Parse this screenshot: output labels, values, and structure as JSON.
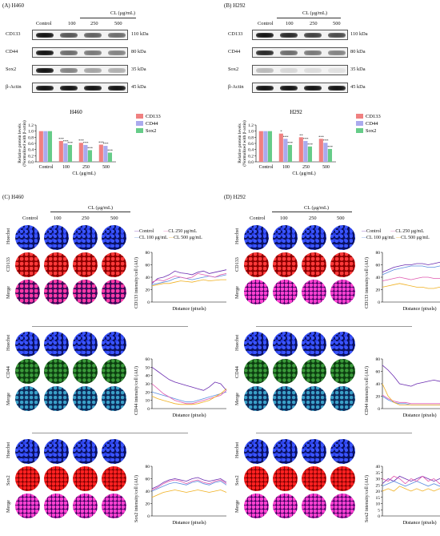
{
  "panel_A": {
    "label": "(A)",
    "cell": "H460"
  },
  "panel_B": {
    "label": "(B)",
    "cell": "H292"
  },
  "panel_C": {
    "label": "(C)",
    "cell": "H460"
  },
  "panel_D": {
    "label": "(D)",
    "cell": "H292"
  },
  "treatment_header": "CL (μg/mL)",
  "lanes": [
    "Control",
    "100",
    "250",
    "500"
  ],
  "blot_rows": [
    {
      "name": "CD133",
      "size": "110 kDa"
    },
    {
      "name": "CD44",
      "size": "80 kDa"
    },
    {
      "name": "Sox2",
      "size": "35 kDa"
    },
    {
      "name": "β-Actin",
      "size": "45 kDa"
    }
  ],
  "if_rows": {
    "hoechst": "Hoechst",
    "cd133": "CD133",
    "cd44": "CD44",
    "sox2": "Sox2",
    "merge": "Merge"
  },
  "if_legend": {
    "control": "Control",
    "cl100": "CL 100 μg/mL",
    "cl250": "CL 250 μg/mL",
    "cl500": "CL 500 μg/mL"
  },
  "profile_xlabel": "Distance (pixels)",
  "profile_ylabels": {
    "cd133": "CD133 intensity/cell (AU)",
    "cd44": "CD44 intensity/cell (AU)",
    "sox2": "Sox2 intensity/cell (AU)"
  },
  "colors": {
    "control": "#6a2bb0",
    "cl100": "#5b8de0",
    "cl250": "#e05ab0",
    "cl500": "#f0b020",
    "cd133": "#f08080",
    "cd44": "#aaaaee",
    "sox2": "#66cc88"
  },
  "chart_data": [
    {
      "type": "bar",
      "panel": "A",
      "title": "H460",
      "xlabel": "CL (μg/mL)",
      "ylabel": "Relative protein levels (Normalized with β-actin)",
      "categories": [
        "Control",
        "100",
        "250",
        "500"
      ],
      "ylim": [
        0,
        1.2
      ],
      "yticks": [
        "0.0",
        "0.2",
        "0.4",
        "0.6",
        "0.8",
        "1.0",
        "1.2"
      ],
      "legend": "top-right",
      "series": [
        {
          "name": "CD133",
          "values": [
            1.0,
            0.68,
            0.62,
            0.56
          ]
        },
        {
          "name": "CD44",
          "values": [
            1.0,
            0.6,
            0.55,
            0.52
          ]
        },
        {
          "name": "Sox2",
          "values": [
            1.0,
            0.55,
            0.38,
            0.3
          ]
        }
      ],
      "annotations": [
        [
          "",
          "",
          ""
        ],
        [
          "***",
          "***",
          "***"
        ],
        [
          "***",
          "***",
          "***"
        ],
        [
          "***",
          "***",
          "***"
        ]
      ]
    },
    {
      "type": "bar",
      "panel": "B",
      "title": "H292",
      "xlabel": "CL (μg/mL)",
      "ylabel": "Relative protein levels (Normalized with β-actin)",
      "categories": [
        "Control",
        "100",
        "250",
        "500"
      ],
      "ylim": [
        0,
        1.2
      ],
      "yticks": [
        "0.0",
        "0.2",
        "0.4",
        "0.6",
        "0.8",
        "1.0",
        "1.2"
      ],
      "legend": "top-right",
      "series": [
        {
          "name": "CD133",
          "values": [
            1.0,
            0.92,
            0.8,
            0.75
          ]
        },
        {
          "name": "CD44",
          "values": [
            1.0,
            0.75,
            0.68,
            0.62
          ]
        },
        {
          "name": "Sox2",
          "values": [
            1.0,
            0.55,
            0.5,
            0.42
          ]
        }
      ],
      "annotations": [
        [
          "",
          "",
          ""
        ],
        [
          "*",
          "***",
          "***"
        ],
        [
          "**",
          "***",
          "***"
        ],
        [
          "***",
          "***",
          "***"
        ]
      ]
    },
    {
      "type": "line",
      "panel": "C",
      "ylabel": "CD133 intensity/cell (AU)",
      "xlabel": "Distance (pixels)",
      "ylim": [
        0,
        80
      ],
      "yticks": [
        "0",
        "20",
        "40",
        "60",
        "80"
      ],
      "series": [
        {
          "name": "Control",
          "values": [
            30,
            38,
            40,
            44,
            50,
            47,
            46,
            44,
            48,
            50,
            46,
            48,
            50,
            52
          ]
        },
        {
          "name": "CL 100 μg/mL",
          "values": [
            28,
            30,
            32,
            34,
            38,
            40,
            38,
            36,
            38,
            40,
            42,
            40,
            42,
            44
          ]
        },
        {
          "name": "CL 250 μg/mL",
          "values": [
            32,
            36,
            34,
            38,
            42,
            40,
            38,
            40,
            46,
            44,
            42,
            40,
            44,
            46
          ]
        },
        {
          "name": "CL 500 μg/mL",
          "values": [
            26,
            28,
            30,
            30,
            32,
            34,
            33,
            32,
            34,
            36,
            34,
            35,
            36,
            36
          ]
        }
      ]
    },
    {
      "type": "line",
      "panel": "C",
      "ylabel": "CD44 intensity/cell (AU)",
      "xlabel": "Distance (pixels)",
      "ylim": [
        0,
        60
      ],
      "yticks": [
        "0",
        "10",
        "20",
        "30",
        "40",
        "50",
        "60"
      ],
      "series": [
        {
          "name": "Control",
          "values": [
            50,
            45,
            40,
            35,
            32,
            30,
            28,
            26,
            24,
            22,
            26,
            32,
            30,
            22
          ]
        },
        {
          "name": "CL 100 μg/mL",
          "values": [
            20,
            18,
            16,
            14,
            12,
            10,
            8,
            8,
            10,
            12,
            14,
            16,
            18,
            20
          ]
        },
        {
          "name": "CL 250 μg/mL",
          "values": [
            30,
            24,
            18,
            14,
            10,
            8,
            6,
            6,
            8,
            10,
            12,
            14,
            16,
            22
          ]
        },
        {
          "name": "CL 500 μg/mL",
          "values": [
            15,
            12,
            10,
            8,
            6,
            5,
            5,
            5,
            6,
            8,
            10,
            14,
            18,
            24
          ]
        }
      ]
    },
    {
      "type": "line",
      "panel": "C",
      "ylabel": "Sox2 intensity/cell (AU)",
      "xlabel": "Distance (pixels)",
      "ylim": [
        0,
        80
      ],
      "yticks": [
        "0",
        "20",
        "40",
        "60",
        "80"
      ],
      "series": [
        {
          "name": "Control",
          "values": [
            44,
            48,
            54,
            58,
            60,
            58,
            56,
            60,
            62,
            58,
            56,
            58,
            60,
            54
          ]
        },
        {
          "name": "CL 100 μg/mL",
          "values": [
            40,
            44,
            48,
            52,
            54,
            52,
            50,
            54,
            56,
            52,
            50,
            54,
            56,
            50
          ]
        },
        {
          "name": "CL 250 μg/mL",
          "values": [
            42,
            46,
            52,
            56,
            58,
            56,
            52,
            56,
            58,
            54,
            52,
            56,
            58,
            52
          ]
        },
        {
          "name": "CL 500 μg/mL",
          "values": [
            30,
            34,
            38,
            40,
            42,
            40,
            38,
            40,
            42,
            40,
            38,
            40,
            42,
            38
          ]
        }
      ]
    },
    {
      "type": "line",
      "panel": "D",
      "ylabel": "CD133 intensity/cell (AU)",
      "xlabel": "Distance (pixels)",
      "ylim": [
        0,
        80
      ],
      "yticks": [
        "0",
        "20",
        "40",
        "60",
        "80"
      ],
      "series": [
        {
          "name": "Control",
          "values": [
            48,
            52,
            56,
            58,
            60,
            60,
            62,
            62,
            60,
            62,
            64,
            66,
            66,
            64
          ]
        },
        {
          "name": "CL 100 μg/mL",
          "values": [
            44,
            48,
            52,
            54,
            56,
            58,
            58,
            58,
            56,
            56,
            58,
            58,
            58,
            58
          ]
        },
        {
          "name": "CL 250 μg/mL",
          "values": [
            34,
            36,
            38,
            40,
            38,
            36,
            38,
            40,
            40,
            38,
            38,
            40,
            40,
            36
          ]
        },
        {
          "name": "CL 500 μg/mL",
          "values": [
            24,
            26,
            28,
            30,
            28,
            26,
            24,
            24,
            22,
            22,
            24,
            24,
            22,
            20
          ]
        }
      ]
    },
    {
      "type": "line",
      "panel": "D",
      "ylabel": "CD44 intensity/cell (AU)",
      "xlabel": "Distance (pixels)",
      "ylim": [
        0,
        80
      ],
      "yticks": [
        "0",
        "20",
        "40",
        "60",
        "80"
      ],
      "series": [
        {
          "name": "Control",
          "values": [
            70,
            62,
            52,
            40,
            38,
            36,
            40,
            42,
            44,
            46,
            44,
            48,
            50,
            50
          ]
        },
        {
          "name": "CL 100 μg/mL",
          "values": [
            20,
            14,
            10,
            8,
            8,
            6,
            6,
            6,
            6,
            6,
            6,
            8,
            8,
            8
          ]
        },
        {
          "name": "CL 250 μg/mL",
          "values": [
            22,
            16,
            12,
            10,
            10,
            8,
            8,
            8,
            8,
            8,
            8,
            10,
            10,
            8
          ]
        },
        {
          "name": "CL 500 μg/mL",
          "values": [
            40,
            20,
            10,
            6,
            6,
            6,
            6,
            6,
            6,
            6,
            6,
            6,
            6,
            6
          ]
        }
      ]
    },
    {
      "type": "line",
      "panel": "D",
      "ylabel": "Sox2 intensity/cell (AU)",
      "xlabel": "Distance (pixels)",
      "ylim": [
        0,
        40
      ],
      "yticks": [
        "0",
        "5",
        "10",
        "15",
        "20",
        "25",
        "30",
        "35",
        "40"
      ],
      "series": [
        {
          "name": "Control",
          "values": [
            26,
            30,
            28,
            32,
            30,
            28,
            30,
            32,
            30,
            28,
            30,
            28,
            26,
            28
          ]
        },
        {
          "name": "CL 100 μg/mL",
          "values": [
            24,
            26,
            28,
            26,
            24,
            26,
            28,
            26,
            24,
            26,
            24,
            26,
            24,
            22
          ]
        },
        {
          "name": "CL 250 μg/mL",
          "values": [
            30,
            28,
            32,
            30,
            26,
            30,
            28,
            32,
            28,
            30,
            26,
            30,
            28,
            30
          ]
        },
        {
          "name": "CL 500 μg/mL",
          "values": [
            20,
            22,
            20,
            24,
            22,
            20,
            22,
            20,
            22,
            20,
            22,
            20,
            20,
            22
          ]
        }
      ]
    }
  ]
}
